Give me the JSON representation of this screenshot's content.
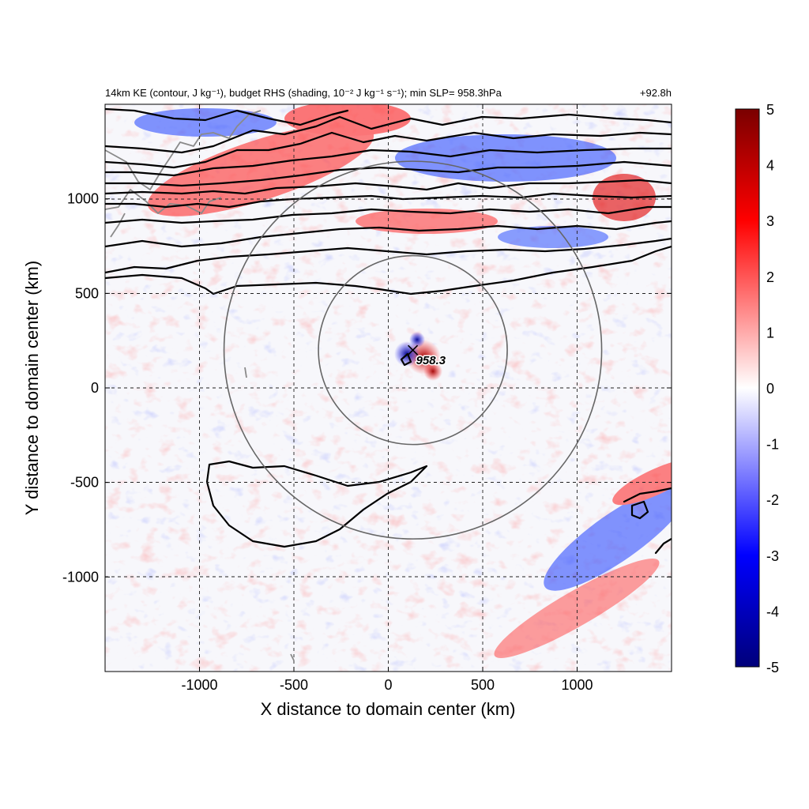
{
  "chart_data": {
    "type": "heatmap",
    "title_left": "14km KE (contour, J kg⁻¹), budget RHS (shading, 10⁻² J kg⁻¹ s⁻¹); min SLP= 958.3hPa",
    "title_right": "+92.8h",
    "xlabel": "X distance to domain center (km)",
    "ylabel": "Y distance to domain center (km)",
    "xlim": [
      -1500,
      1500
    ],
    "ylim": [
      -1500,
      1500
    ],
    "xticks": [
      -1000,
      -500,
      0,
      500,
      1000
    ],
    "yticks": [
      -1000,
      -500,
      0,
      500,
      1000
    ],
    "xtick_labels": [
      "-1000",
      "-500",
      "0",
      "500",
      "1000"
    ],
    "ytick_labels": [
      "-1000",
      "-500",
      "0",
      "500",
      "1000"
    ],
    "grid": true,
    "colorbar": {
      "min": -5,
      "max": 5,
      "ticks": [
        5,
        4,
        3,
        2,
        1,
        0,
        -1,
        -2,
        -3,
        -4,
        -5
      ],
      "colors": [
        "#00007a",
        "#0000ff",
        "#ffffff",
        "#ff0000",
        "#7a0000"
      ]
    },
    "storm_center": {
      "x": 130,
      "y": 200,
      "min_slp_label": "958.3"
    },
    "rings": [
      {
        "center_x": 130,
        "center_y": 200,
        "radius_km": 500
      },
      {
        "center_x": 130,
        "center_y": 200,
        "radius_km": 1000
      }
    ]
  }
}
